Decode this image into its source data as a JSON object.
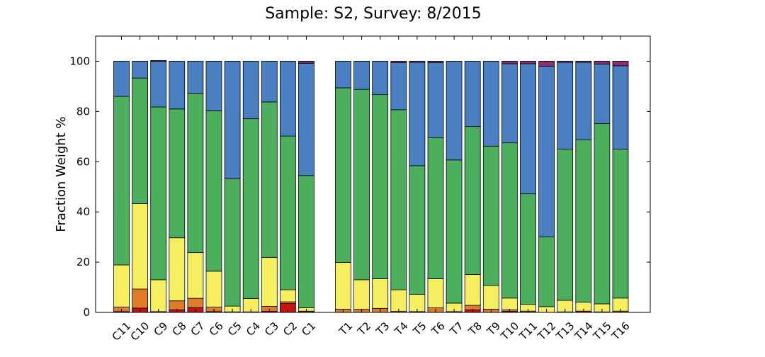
{
  "chart_data": {
    "type": "bar",
    "stacked": true,
    "title": "Sample: S2, Survey: 8/2015",
    "xlabel": "",
    "ylabel": "Fraction Weight %",
    "ylim": [
      0,
      110
    ],
    "yticks": [
      0,
      20,
      40,
      60,
      80,
      100
    ],
    "grid": false,
    "legend": "none",
    "categories": [
      "C11",
      "C10",
      "C9",
      "C8",
      "C7",
      "C6",
      "C5",
      "C4",
      "C3",
      "C2",
      "C1",
      "T1",
      "T2",
      "T3",
      "T4",
      "T5",
      "T6",
      "T7",
      "T8",
      "T9",
      "T10",
      "T11",
      "T12",
      "T13",
      "T14",
      "T15",
      "T16"
    ],
    "colors": [
      "#cc1111",
      "#e07b28",
      "#f5ef5f",
      "#4caf5d",
      "#4a7fc1",
      "#8b2f6e"
    ],
    "series": [
      {
        "values": [
          0.3,
          1.7,
          0,
          1.0,
          1.9,
          0.3,
          0,
          0,
          0.4,
          3.5,
          0.2,
          0,
          0,
          0,
          0,
          0,
          0,
          0,
          1.0,
          0,
          0.4,
          0,
          0,
          0,
          0.5,
          0,
          0
        ]
      },
      {
        "values": [
          1.8,
          7.6,
          0.3,
          3.6,
          3.7,
          1.8,
          0.2,
          0.2,
          2.0,
          0.7,
          0.3,
          1.3,
          1.2,
          1.6,
          0.4,
          0.3,
          1.8,
          0.3,
          1.8,
          1.3,
          0.6,
          0.5,
          0,
          0.2,
          0,
          0.2,
          0.5
        ]
      },
      {
        "values": [
          16.8,
          34.0,
          12.7,
          25.1,
          18.2,
          14.3,
          2.3,
          5.3,
          19.5,
          4.8,
          1.3,
          18.6,
          11.8,
          11.8,
          8.6,
          6.9,
          11.6,
          3.4,
          12.3,
          9.4,
          4.7,
          2.7,
          2.3,
          4.6,
          3.6,
          3.2,
          5.2
        ]
      },
      {
        "values": [
          67.1,
          50.0,
          68.8,
          51.3,
          63.3,
          63.9,
          50.7,
          71.6,
          61.9,
          61.2,
          52.7,
          69.5,
          75.8,
          73.3,
          71.7,
          51.2,
          56.1,
          57.0,
          58.9,
          55.5,
          61.8,
          44.0,
          27.8,
          60.2,
          64.6,
          71.8,
          59.3
        ]
      },
      {
        "values": [
          14.0,
          6.7,
          18.2,
          19.0,
          12.9,
          19.7,
          46.8,
          22.9,
          16.2,
          29.8,
          44.7,
          10.6,
          11.2,
          13.3,
          18.8,
          41.2,
          30.0,
          39.3,
          26.0,
          33.8,
          31.5,
          51.8,
          67.9,
          34.6,
          30.9,
          23.7,
          33.2
        ]
      },
      {
        "values": [
          0,
          0,
          0.3,
          0,
          0,
          0,
          0,
          0,
          0,
          0,
          0.8,
          0,
          0,
          0,
          0.5,
          0.4,
          0.5,
          0,
          0,
          0,
          1.0,
          1.0,
          2.0,
          0.4,
          0.4,
          1.1,
          1.8
        ]
      }
    ]
  }
}
